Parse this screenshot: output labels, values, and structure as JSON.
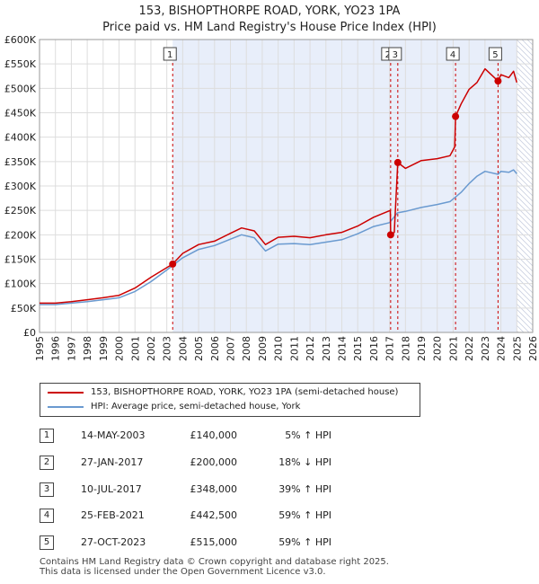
{
  "chart_data": {
    "type": "line",
    "title_lines": [
      "153, BISHOPTHORPE ROAD, YORK, YO23 1PA",
      "Price paid vs. HM Land Registry's House Price Index (HPI)"
    ],
    "xlim": [
      1995,
      2026
    ],
    "ylim": [
      0,
      600000
    ],
    "x_ticks": [
      "1995",
      "1996",
      "1997",
      "1998",
      "1999",
      "2000",
      "2001",
      "2002",
      "2003",
      "2004",
      "2005",
      "2006",
      "2007",
      "2008",
      "2009",
      "2010",
      "2011",
      "2012",
      "2013",
      "2014",
      "2015",
      "2016",
      "2017",
      "2018",
      "2019",
      "2020",
      "2021",
      "2022",
      "2023",
      "2024",
      "2025",
      "2026"
    ],
    "y_ticks": [
      {
        "value": 0,
        "label": "£0"
      },
      {
        "value": 50000,
        "label": "£50K"
      },
      {
        "value": 100000,
        "label": "£100K"
      },
      {
        "value": 150000,
        "label": "£150K"
      },
      {
        "value": 200000,
        "label": "£200K"
      },
      {
        "value": 250000,
        "label": "£250K"
      },
      {
        "value": 300000,
        "label": "£300K"
      },
      {
        "value": 350000,
        "label": "£350K"
      },
      {
        "value": 400000,
        "label": "£400K"
      },
      {
        "value": 450000,
        "label": "£450K"
      },
      {
        "value": 500000,
        "label": "£500K"
      },
      {
        "value": 550000,
        "label": "£550K"
      },
      {
        "value": 600000,
        "label": "£600K"
      }
    ],
    "shaded_ranges": [
      [
        2003.37,
        2025.0
      ],
      [
        2025.0,
        2026.0
      ]
    ],
    "series": [
      {
        "name": "153, BISHOPTHORPE ROAD, YORK, YO23 1PA (semi-detached house)",
        "color": "#cc0000",
        "x": [
          1995,
          1996,
          1997,
          1998,
          1999,
          2000,
          2001,
          2002,
          2003.37,
          2004,
          2005,
          2006,
          2007,
          2007.7,
          2008.5,
          2009.2,
          2010,
          2011,
          2012,
          2013,
          2014,
          2015,
          2016,
          2017.05,
          2017.07,
          2017.3,
          2017.52,
          2018,
          2019,
          2020,
          2020.8,
          2021.1,
          2021.15,
          2021.5,
          2022,
          2022.5,
          2023,
          2023.82,
          2024,
          2024.5,
          2024.8,
          2025.0
        ],
        "values": [
          60000,
          60000,
          63000,
          67000,
          71000,
          76000,
          91000,
          113000,
          140000,
          162000,
          180000,
          187000,
          203000,
          214000,
          208000,
          180000,
          195000,
          197000,
          194000,
          200000,
          205000,
          218000,
          236000,
          250000,
          200000,
          205000,
          348000,
          336000,
          352000,
          356000,
          362000,
          380000,
          442500,
          468000,
          498000,
          512000,
          540000,
          515000,
          528000,
          522000,
          535000,
          512000
        ]
      },
      {
        "name": "HPI: Average price, semi-detached house, York",
        "color": "#6a9ad0",
        "x": [
          1995,
          1996,
          1997,
          1998,
          1999,
          2000,
          2001,
          2002,
          2003,
          2004,
          2005,
          2006,
          2007,
          2007.7,
          2008.5,
          2009.2,
          2010,
          2011,
          2012,
          2013,
          2014,
          2015,
          2016,
          2017,
          2017.5,
          2018,
          2019,
          2020,
          2020.8,
          2021.5,
          2022,
          2022.5,
          2023,
          2023.82,
          2024,
          2024.5,
          2024.8,
          2025.0
        ],
        "values": [
          57000,
          57000,
          60000,
          63000,
          67000,
          71000,
          84000,
          104000,
          128000,
          153000,
          170000,
          178000,
          191000,
          200000,
          194000,
          167000,
          181000,
          182000,
          180000,
          185000,
          190000,
          202000,
          217000,
          225000,
          245000,
          248000,
          256000,
          262000,
          268000,
          287000,
          305000,
          320000,
          330000,
          324000,
          330000,
          328000,
          333000,
          325000
        ]
      }
    ],
    "markers": [
      {
        "label": "1",
        "x": 2003.37,
        "y": 140000
      },
      {
        "label": "2",
        "x": 2017.07,
        "y": 200000
      },
      {
        "label": "3",
        "x": 2017.52,
        "y": 348000
      },
      {
        "label": "4",
        "x": 2021.15,
        "y": 442500
      },
      {
        "label": "5",
        "x": 2023.82,
        "y": 515000
      }
    ]
  },
  "legend": {
    "property_label": "153, BISHOPTHORPE ROAD, YORK, YO23 1PA (semi-detached house)",
    "hpi_label": "HPI: Average price, semi-detached house, York"
  },
  "sales": [
    {
      "num": "1",
      "date": "14-MAY-2003",
      "price": "£140,000",
      "hpi": "5% ↑ HPI"
    },
    {
      "num": "2",
      "date": "27-JAN-2017",
      "price": "£200,000",
      "hpi": "18% ↓ HPI"
    },
    {
      "num": "3",
      "date": "10-JUL-2017",
      "price": "£348,000",
      "hpi": "39% ↑ HPI"
    },
    {
      "num": "4",
      "date": "25-FEB-2021",
      "price": "£442,500",
      "hpi": "59% ↑ HPI"
    },
    {
      "num": "5",
      "date": "27-OCT-2023",
      "price": "£515,000",
      "hpi": "59% ↑ HPI"
    }
  ],
  "footer": {
    "line1": "Contains HM Land Registry data © Crown copyright and database right 2025.",
    "line2": "This data is licensed under the Open Government Licence v3.0."
  }
}
